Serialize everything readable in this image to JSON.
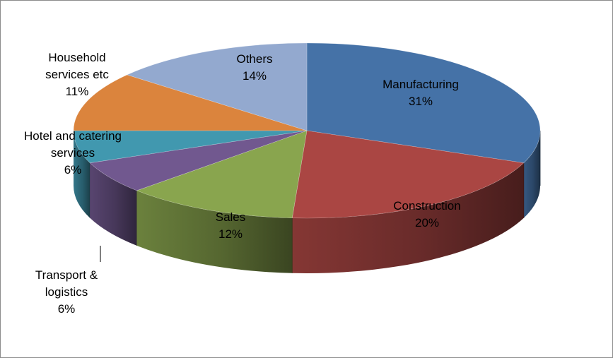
{
  "chart_data": {
    "type": "pie",
    "style": "3d",
    "categories": [
      "Manufacturing",
      "Construction",
      "Sales",
      "Transport & logistics",
      "Hotel and catering services",
      "Household services etc",
      "Others"
    ],
    "values": [
      31,
      20,
      12,
      6,
      6,
      11,
      14
    ],
    "labels": [
      {
        "lines": [
          "Manufacturing"
        ],
        "value": "31%"
      },
      {
        "lines": [
          "Construction"
        ],
        "value": "20%"
      },
      {
        "lines": [
          "Sales"
        ],
        "value": "12%"
      },
      {
        "lines": [
          "Transport &",
          "logistics"
        ],
        "value": "6%"
      },
      {
        "lines": [
          "Hotel and catering",
          "services"
        ],
        "value": "6%"
      },
      {
        "lines": [
          "Household",
          "services etc"
        ],
        "value": "11%"
      },
      {
        "lines": [
          "Others"
        ],
        "value": "14%"
      }
    ],
    "colors": [
      "#4572a7",
      "#aa4643",
      "#89a54e",
      "#71588f",
      "#4198af",
      "#db843d",
      "#93a9cf"
    ],
    "title": "",
    "legend": "none"
  }
}
